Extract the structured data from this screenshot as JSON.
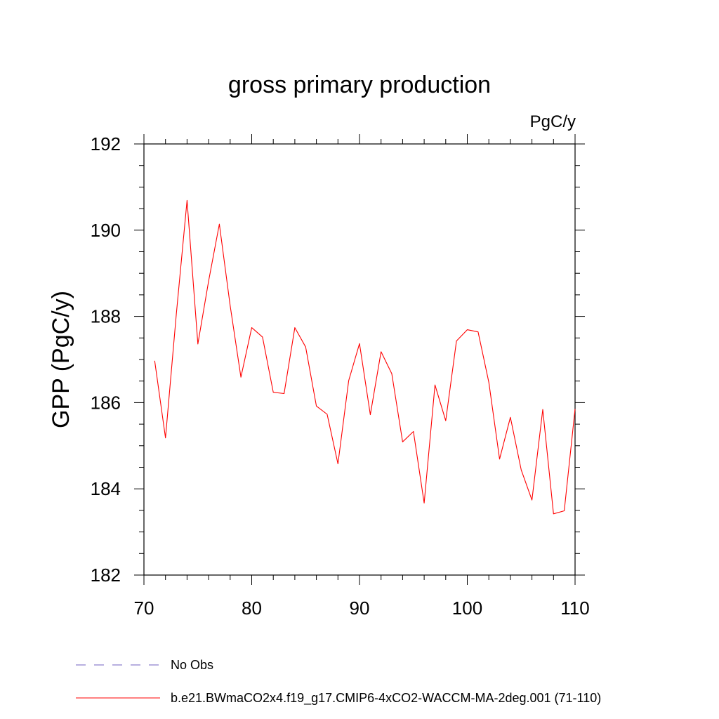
{
  "chart_data": {
    "type": "line",
    "title": "gross primary production",
    "units": "PgC/y",
    "xlabel": "",
    "ylabel": "GPP  (PgC/y)",
    "xlim": [
      70,
      110
    ],
    "ylim": [
      182,
      192
    ],
    "xticks": [
      "70",
      "80",
      "90",
      "100",
      "110"
    ],
    "yticks": [
      "182",
      "184",
      "186",
      "188",
      "190",
      "192"
    ],
    "grid": false,
    "legend_position": "bottom",
    "legend": [
      {
        "label": "No Obs",
        "color": "#7060c0",
        "style": "dashed"
      },
      {
        "label": "b.e21.BWmaCO2x4.f19_g17.CMIP6-4xCO2-WACCM-MA-2deg.001 (71-110)",
        "color": "#ff0000",
        "style": "solid"
      }
    ],
    "series": [
      {
        "name": "b.e21.BWmaCO2x4.f19_g17.CMIP6-4xCO2-WACCM-MA-2deg.001 (71-110)",
        "color": "#ff0000",
        "x": [
          71,
          72,
          73,
          74,
          75,
          76,
          77,
          78,
          79,
          80,
          81,
          82,
          83,
          84,
          85,
          86,
          87,
          88,
          89,
          90,
          91,
          92,
          93,
          94,
          95,
          96,
          97,
          98,
          99,
          100,
          101,
          102,
          103,
          104,
          105,
          106,
          107,
          108,
          109,
          110
        ],
        "values": [
          186.97,
          185.18,
          188.05,
          190.69,
          187.36,
          188.82,
          190.14,
          188.25,
          186.59,
          187.74,
          187.52,
          186.24,
          186.21,
          187.74,
          187.29,
          185.92,
          185.73,
          184.58,
          186.51,
          187.37,
          185.72,
          187.18,
          186.67,
          185.09,
          185.33,
          183.67,
          186.41,
          185.58,
          187.43,
          187.69,
          187.64,
          186.47,
          184.69,
          185.66,
          184.44,
          183.74,
          185.84,
          183.42,
          183.49,
          185.85
        ]
      }
    ]
  }
}
